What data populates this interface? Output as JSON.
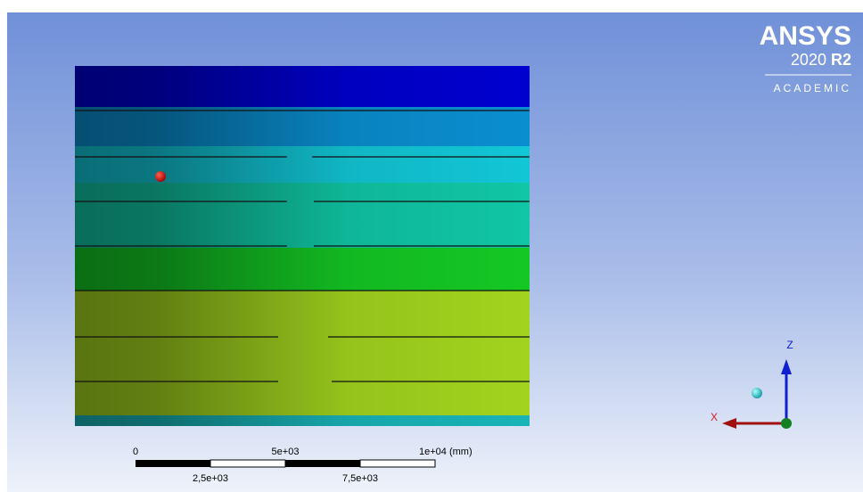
{
  "logo": {
    "brand": "ANSYS",
    "version": "2020",
    "release": "R2",
    "edition": "ACADEMIC"
  },
  "scale": {
    "labels_top": [
      "0",
      "5e+03",
      "1e+04 (mm)"
    ],
    "labels_bottom": [
      "2,5e+03",
      "7,5e+03"
    ]
  },
  "triad": {
    "z": "Z",
    "x": "X"
  }
}
